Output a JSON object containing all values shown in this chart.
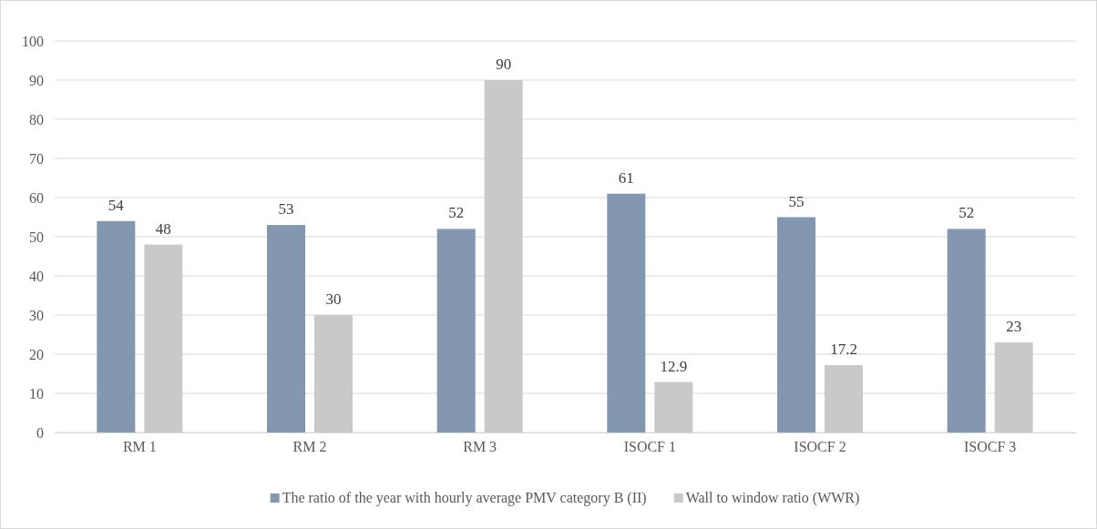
{
  "chart_data": {
    "type": "bar",
    "categories": [
      "RM 1",
      "RM 2",
      "RM 3",
      "ISOCF 1",
      "ISOCF 2",
      "ISOCF 3"
    ],
    "series": [
      {
        "name": "The ratio of the year with hourly average PMV category B (II)",
        "color": "#8497b0",
        "values": [
          54,
          53,
          52,
          61,
          55,
          52
        ]
      },
      {
        "name": "Wall to window ratio (WWR)",
        "color": "#c9c9c9",
        "values": [
          48,
          30,
          90,
          12.9,
          17.2,
          23
        ]
      }
    ],
    "ylim": [
      0,
      100
    ],
    "yticks": [
      0,
      10,
      20,
      30,
      40,
      50,
      60,
      70,
      80,
      90,
      100
    ],
    "grid": "y",
    "legend": "bottom",
    "data_labels": true
  }
}
